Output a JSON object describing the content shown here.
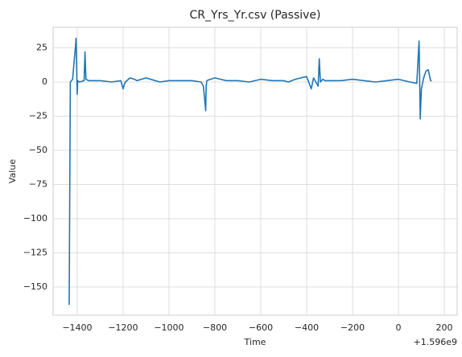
{
  "chart_data": {
    "type": "line",
    "title": "CR_Yrs_Yr.csv (Passive)",
    "x_label": "Time",
    "y_label": "Value",
    "x_offset": "+1.596e9",
    "x": [
      -1435,
      -1430,
      -1420,
      -1412,
      -1408,
      -1405,
      -1403,
      -1400,
      -1398,
      -1390,
      -1370,
      -1366,
      -1362,
      -1350,
      -1300,
      -1250,
      -1210,
      -1200,
      -1195,
      -1190,
      -1170,
      -1150,
      -1140,
      -1100,
      -1060,
      -1040,
      -1000,
      -950,
      -900,
      -860,
      -850,
      -840,
      -838,
      -835,
      -820,
      -800,
      -750,
      -700,
      -650,
      -600,
      -550,
      -500,
      -480,
      -450,
      -400,
      -380,
      -370,
      -350,
      -345,
      -340,
      -330,
      -320,
      -300,
      -250,
      -200,
      -150,
      -100,
      -50,
      0,
      50,
      80,
      90,
      95,
      100,
      110,
      120,
      130,
      140,
      145
    ],
    "series": [
      {
        "name": "Value",
        "color": "#1f77b4",
        "values": [
          -163,
          0,
          2,
          18,
          25,
          32,
          15,
          -9,
          1,
          0,
          1,
          22,
          2,
          1,
          1,
          0,
          1,
          -5,
          -2,
          0,
          3,
          2,
          1,
          3,
          1,
          0,
          1,
          1,
          1,
          0,
          -3,
          -21,
          -3,
          1,
          2,
          3,
          1,
          1,
          0,
          2,
          1,
          1,
          0,
          2,
          4,
          -5,
          3,
          -3,
          17,
          0,
          2,
          1,
          1,
          1,
          2,
          1,
          0,
          1,
          2,
          0,
          -1,
          30,
          -27,
          -5,
          3,
          8,
          9,
          1,
          1
        ]
      }
    ],
    "xlim": [
      -1505,
      256
    ],
    "ylim": [
      -170.6,
      40
    ],
    "xticks": [
      {
        "value": -1400,
        "label": "−1400"
      },
      {
        "value": -1200,
        "label": "−1200"
      },
      {
        "value": -1000,
        "label": "−1000"
      },
      {
        "value": -800,
        "label": "−800"
      },
      {
        "value": -600,
        "label": "−600"
      },
      {
        "value": -400,
        "label": "−400"
      },
      {
        "value": -200,
        "label": "−200"
      },
      0,
      200
    ],
    "yticks": [
      25,
      0,
      {
        "value": -25,
        "label": "−25"
      },
      {
        "value": -50,
        "label": "−50"
      },
      {
        "value": -75,
        "label": "−75"
      },
      {
        "value": -100,
        "label": "−100"
      },
      {
        "value": -125,
        "label": "−125"
      },
      {
        "value": -150,
        "label": "−150"
      }
    ],
    "grid": true
  }
}
